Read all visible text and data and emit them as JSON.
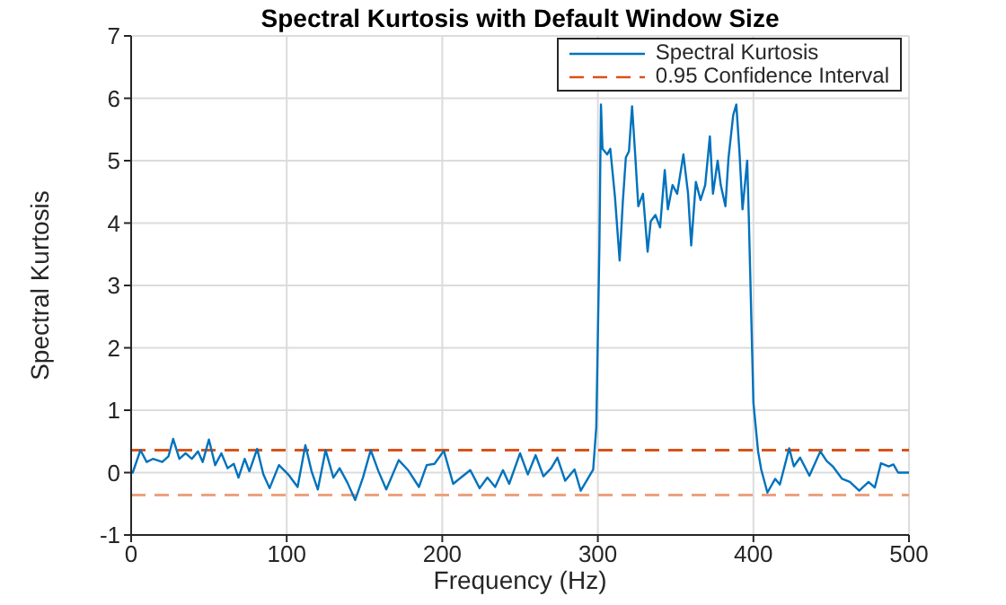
{
  "chart_data": {
    "type": "line",
    "title": "Spectral Kurtosis with Default Window Size",
    "xlabel": "Frequency (Hz)",
    "ylabel": "Spectral Kurtosis",
    "xlim": [
      0,
      500
    ],
    "xticks": [
      0,
      100,
      200,
      300,
      400,
      500
    ],
    "ylim": [
      -1,
      7
    ],
    "yticks": [
      -1,
      0,
      1,
      2,
      3,
      4,
      5,
      6,
      7
    ],
    "grid": true,
    "legend": "top right",
    "line_style": "solid",
    "marker": "none",
    "series": [
      {
        "name": "Spectral Kurtosis",
        "color": "#0072bd",
        "x": [
          0,
          1,
          6,
          10,
          14,
          20,
          24,
          27,
          31,
          35,
          39,
          43,
          46,
          50,
          54,
          58,
          62,
          66,
          69,
          73,
          76,
          81,
          85,
          89,
          95,
          101,
          107,
          112,
          116,
          120,
          125,
          130,
          134,
          139,
          144,
          149,
          154,
          159,
          164,
          172,
          178,
          185,
          190,
          195,
          201,
          207,
          212,
          218,
          224,
          229,
          234,
          239,
          243,
          250,
          255,
          260,
          265,
          270,
          274,
          279,
          285,
          289,
          297,
          299,
          301,
          302,
          303,
          306,
          308,
          311,
          314,
          316,
          318,
          320,
          322,
          324,
          326,
          329,
          332,
          334,
          337,
          340,
          343,
          345,
          348,
          351,
          355,
          358,
          360,
          363,
          366,
          369,
          372,
          374,
          377,
          379,
          382,
          384,
          387,
          389,
          391,
          393,
          396,
          397,
          400,
          403,
          405,
          409,
          414,
          417,
          423,
          426,
          430,
          436,
          443,
          447,
          451,
          457,
          462,
          468,
          474,
          478,
          482,
          487,
          490,
          493,
          497,
          500
        ],
        "values": [
          0,
          0,
          0.36,
          0.17,
          0.22,
          0.17,
          0.26,
          0.54,
          0.22,
          0.31,
          0.22,
          0.34,
          0.17,
          0.53,
          0.12,
          0.31,
          0.07,
          0.14,
          -0.08,
          0.22,
          0.02,
          0.38,
          -0.03,
          -0.25,
          0.12,
          -0.03,
          -0.23,
          0.44,
          0.02,
          -0.27,
          0.36,
          -0.08,
          0.07,
          -0.16,
          -0.44,
          -0.08,
          0.36,
          0.02,
          -0.27,
          0.2,
          0.04,
          -0.23,
          0.12,
          0.14,
          0.35,
          -0.18,
          -0.08,
          0.04,
          -0.25,
          -0.08,
          -0.23,
          0.04,
          -0.18,
          0.31,
          -0.03,
          0.28,
          -0.06,
          0.07,
          0.24,
          -0.13,
          0.05,
          -0.29,
          0.05,
          0.73,
          3.64,
          5.9,
          5.19,
          5.1,
          5.19,
          4.42,
          3.4,
          4.32,
          5.05,
          5.15,
          5.87,
          5.1,
          4.27,
          4.47,
          3.54,
          4.03,
          4.13,
          3.93,
          4.85,
          4.22,
          4.61,
          4.47,
          5.1,
          4.47,
          3.64,
          4.66,
          4.37,
          4.61,
          5.39,
          4.47,
          5.0,
          4.61,
          4.27,
          5.05,
          5.73,
          5.9,
          5.15,
          4.22,
          5.0,
          4.13,
          1.12,
          0.34,
          0.05,
          -0.32,
          -0.1,
          -0.19,
          0.39,
          0.1,
          0.24,
          -0.05,
          0.34,
          0.19,
          0.1,
          -0.1,
          -0.15,
          -0.29,
          -0.15,
          -0.24,
          0.15,
          0.1,
          0.13,
          0,
          0,
          0
        ]
      }
    ],
    "ref_lines": [
      {
        "axis": "y",
        "value": 0.36,
        "label": "0.95 Confidence Interval",
        "color": "#d95319",
        "line_style": "dashed"
      },
      {
        "axis": "y",
        "value": -0.36,
        "label": null,
        "color": "#eda17f",
        "line_style": "dashed"
      }
    ]
  }
}
